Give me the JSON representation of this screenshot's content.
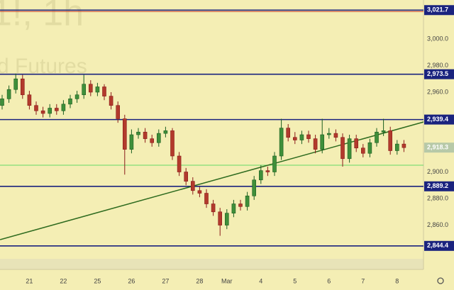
{
  "chart_data": {
    "type": "candlestick",
    "watermark": {
      "symbol": "1!, 1h",
      "description": "d Futures"
    },
    "categories": [
      null,
      null,
      null,
      null,
      "21",
      null,
      null,
      null,
      null,
      "22",
      null,
      null,
      null,
      null,
      "25",
      null,
      null,
      null,
      null,
      "26",
      null,
      null,
      null,
      null,
      "27",
      null,
      null,
      null,
      null,
      "28",
      null,
      null,
      null,
      "Mar",
      null,
      null,
      null,
      null,
      "4",
      null,
      null,
      null,
      null,
      "5",
      null,
      null,
      null,
      null,
      "6",
      null,
      null,
      null,
      null,
      "7",
      null,
      null,
      null,
      null,
      "8",
      null
    ],
    "open": [
      2950,
      2955,
      2962,
      2970,
      2958,
      2950,
      2946,
      2944,
      2948,
      2946,
      2951,
      2955,
      2958,
      2966,
      2960,
      2964,
      2957,
      2950,
      2940,
      2917,
      2928,
      2930,
      2925,
      2922,
      2929,
      2931,
      2912,
      2900,
      2893,
      2886,
      2884,
      2876,
      2870,
      2860,
      2869,
      2876,
      2874,
      2882,
      2894,
      2901,
      2900,
      2912,
      2933,
      2926,
      2924,
      2928,
      2925,
      2917,
      2928,
      2929,
      2926,
      2910,
      2925,
      2918,
      2914,
      2922,
      2930,
      2931,
      2916,
      2921
    ],
    "high": [
      2958,
      2965,
      2974,
      2973,
      2961,
      2953,
      2949,
      2951,
      2951,
      2954,
      2958,
      2961,
      2973,
      2969,
      2967,
      2966,
      2960,
      2953,
      2943,
      2932,
      2933,
      2933,
      2928,
      2932,
      2934,
      2933,
      2915,
      2903,
      2896,
      2889,
      2887,
      2879,
      2873,
      2872,
      2879,
      2879,
      2885,
      2897,
      2905,
      2904,
      2915,
      2940,
      2936,
      2930,
      2931,
      2931,
      2928,
      2940,
      2933,
      2932,
      2929,
      2928,
      2928,
      2921,
      2925,
      2933,
      2940,
      2934,
      2924,
      2924
    ],
    "low": [
      2947,
      2952,
      2959,
      2955,
      2947,
      2943,
      2941,
      2941,
      2943,
      2943,
      2948,
      2952,
      2955,
      2957,
      2957,
      2954,
      2947,
      2937,
      2898,
      2914,
      2925,
      2922,
      2919,
      2919,
      2926,
      2909,
      2897,
      2890,
      2883,
      2881,
      2873,
      2867,
      2852,
      2857,
      2866,
      2871,
      2871,
      2879,
      2891,
      2897,
      2897,
      2909,
      2923,
      2921,
      2921,
      2922,
      2914,
      2914,
      2925,
      2923,
      2904,
      2907,
      2915,
      2911,
      2911,
      2919,
      2927,
      2913,
      2913,
      2915
    ],
    "close": [
      2955,
      2962,
      2970,
      2958,
      2950,
      2946,
      2944,
      2948,
      2946,
      2951,
      2955,
      2958,
      2966,
      2960,
      2964,
      2957,
      2950,
      2940,
      2917,
      2928,
      2930,
      2925,
      2922,
      2929,
      2931,
      2912,
      2900,
      2893,
      2886,
      2884,
      2876,
      2870,
      2860,
      2869,
      2876,
      2874,
      2882,
      2894,
      2901,
      2900,
      2912,
      2933,
      2926,
      2924,
      2928,
      2925,
      2917,
      2928,
      2929,
      2926,
      2910,
      2925,
      2918,
      2914,
      2922,
      2930,
      2931,
      2916,
      2921,
      2918.3
    ],
    "up_color": "#1b5e20",
    "down_color": "#8b1a1a",
    "ylim": [
      2826.7,
      3029.3
    ],
    "yticks": [
      {
        "value": 3000,
        "label": "3,000.0"
      },
      {
        "value": 2980,
        "label": "2,980.0"
      },
      {
        "value": 2960,
        "label": "2,960.0"
      },
      {
        "value": 2900,
        "label": "2,900.0"
      },
      {
        "value": 2880,
        "label": "2,880.0"
      },
      {
        "value": 2860,
        "label": "2,860.0"
      }
    ],
    "levels": [
      {
        "value": 3021.7,
        "label": "3,021.7",
        "color": "#1a237e"
      },
      {
        "value": 2973.5,
        "label": "2,973.5",
        "color": "#1a237e"
      },
      {
        "value": 2939.4,
        "label": "2,939.4",
        "color": "#1a237e"
      },
      {
        "value": 2889.2,
        "label": "2,889.2",
        "color": "#1a237e"
      },
      {
        "value": 2844.4,
        "label": "2,844.4",
        "color": "#1a237e"
      }
    ],
    "last_price": {
      "value": 2918.3,
      "label": "2,918.3",
      "color": "#b7c9a8"
    },
    "support_line": {
      "value": 2905.1,
      "color": "#66d966"
    },
    "trend_line": {
      "start": {
        "index": -0.3,
        "value": 2849.1
      },
      "end": {
        "index": 61.9,
        "value": 2937.6
      },
      "color": "#2e6b1f"
    }
  }
}
